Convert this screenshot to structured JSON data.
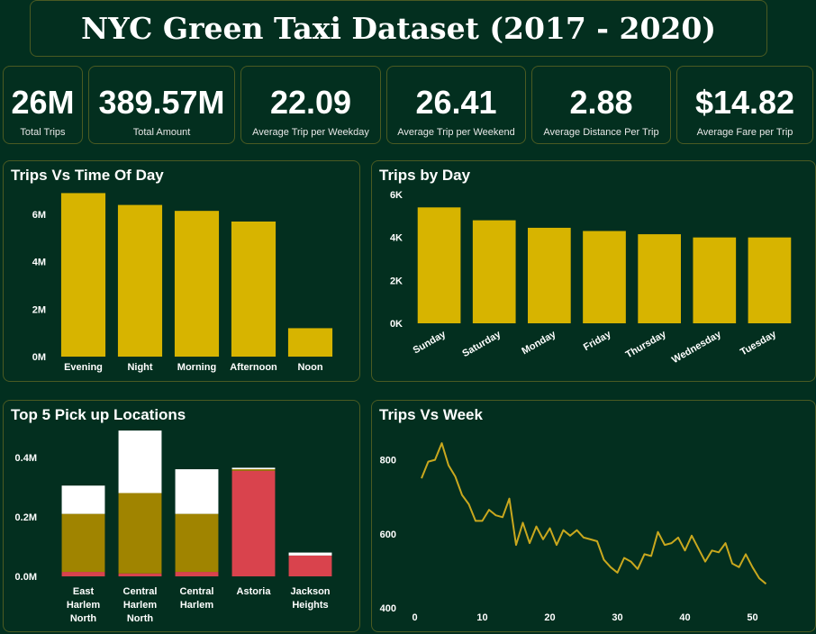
{
  "title": "NYC  Green Taxi  Dataset (2017 - 2020)",
  "kpis": [
    {
      "value": "26M",
      "label": "Total Trips"
    },
    {
      "value": "389.57M",
      "label": "Total Amount"
    },
    {
      "value": "22.09",
      "label": "Average Trip per Weekday"
    },
    {
      "value": "26.41",
      "label": "Average Trip per Weekend"
    },
    {
      "value": "2.88",
      "label": "Average Distance Per Trip"
    },
    {
      "value": "$14.82",
      "label": "Average Fare per Trip"
    }
  ],
  "colors": {
    "background": "#022f1f",
    "bar": "#d7b400",
    "olive": "#a08400",
    "red": "#d9434d",
    "line": "#c9a81e"
  },
  "chart_data": [
    {
      "id": "time_of_day",
      "type": "bar",
      "title": "Trips Vs Time Of Day",
      "categories": [
        "Evening",
        "Night",
        "Morning",
        "Afternoon",
        "Noon"
      ],
      "values": [
        6.9,
        6.4,
        6.15,
        5.7,
        1.2
      ],
      "value_unit": "M",
      "ylim": [
        0,
        7.6
      ],
      "yticks": [
        0,
        2,
        4,
        6
      ],
      "ytick_labels": [
        "0M",
        "2M",
        "4M",
        "6M"
      ]
    },
    {
      "id": "by_day",
      "type": "bar",
      "title": "Trips by Day",
      "categories": [
        "Sunday",
        "Saturday",
        "Monday",
        "Friday",
        "Thursday",
        "Wednesday",
        "Tuesday"
      ],
      "values": [
        5.4,
        4.8,
        4.45,
        4.3,
        4.15,
        4.0,
        4.0
      ],
      "value_unit": "K",
      "ylim": [
        0,
        6
      ],
      "yticks": [
        0,
        2,
        4,
        6
      ],
      "ytick_labels": [
        "0K",
        "2K",
        "4K",
        "6K"
      ]
    },
    {
      "id": "pickup",
      "type": "bar",
      "stacked": true,
      "title": "Top 5 Pick up Locations",
      "categories": [
        "East\nHarlem\nNorth",
        "Central\nHarlem\nNorth",
        "Central\nHarlem",
        "Astoria",
        "Jackson\nHeights"
      ],
      "series": [
        {
          "values": [
            0.015,
            0.01,
            0.015,
            0.355,
            0.07
          ],
          "color": "#d9434d"
        },
        {
          "values": [
            0.195,
            0.27,
            0.195,
            0.005,
            0.0
          ],
          "color": "#a08400"
        },
        {
          "values": [
            0.095,
            0.21,
            0.15,
            0.005,
            0.01
          ],
          "color": "#ffffff"
        }
      ],
      "ylim": [
        0,
        0.46
      ],
      "yticks": [
        0,
        0.2,
        0.4
      ],
      "ytick_labels": [
        "0.0M",
        "0.2M",
        "0.4M"
      ]
    },
    {
      "id": "week",
      "type": "line",
      "title": "Trips Vs Week",
      "x": [
        1,
        2,
        3,
        4,
        5,
        6,
        7,
        8,
        9,
        10,
        11,
        12,
        13,
        14,
        15,
        16,
        17,
        18,
        19,
        20,
        21,
        22,
        23,
        24,
        25,
        26,
        27,
        28,
        29,
        30,
        31,
        32,
        33,
        34,
        35,
        36,
        37,
        38,
        39,
        40,
        41,
        42,
        43,
        44,
        45,
        46,
        47,
        48,
        49,
        50,
        51,
        52
      ],
      "y": [
        750,
        795,
        800,
        845,
        785,
        755,
        705,
        680,
        635,
        635,
        665,
        650,
        645,
        695,
        570,
        630,
        575,
        620,
        585,
        615,
        570,
        610,
        595,
        610,
        590,
        585,
        580,
        530,
        510,
        495,
        535,
        525,
        505,
        545,
        540,
        605,
        570,
        575,
        590,
        555,
        595,
        560,
        525,
        555,
        550,
        575,
        520,
        510,
        545,
        510,
        480,
        465
      ],
      "xlim": [
        -1,
        55
      ],
      "ylim": [
        400,
        850
      ],
      "xticks": [
        0,
        10,
        20,
        30,
        40,
        50
      ],
      "yticks": [
        400,
        600,
        800
      ],
      "ytick_labels": [
        "400",
        "600",
        "800"
      ]
    }
  ]
}
